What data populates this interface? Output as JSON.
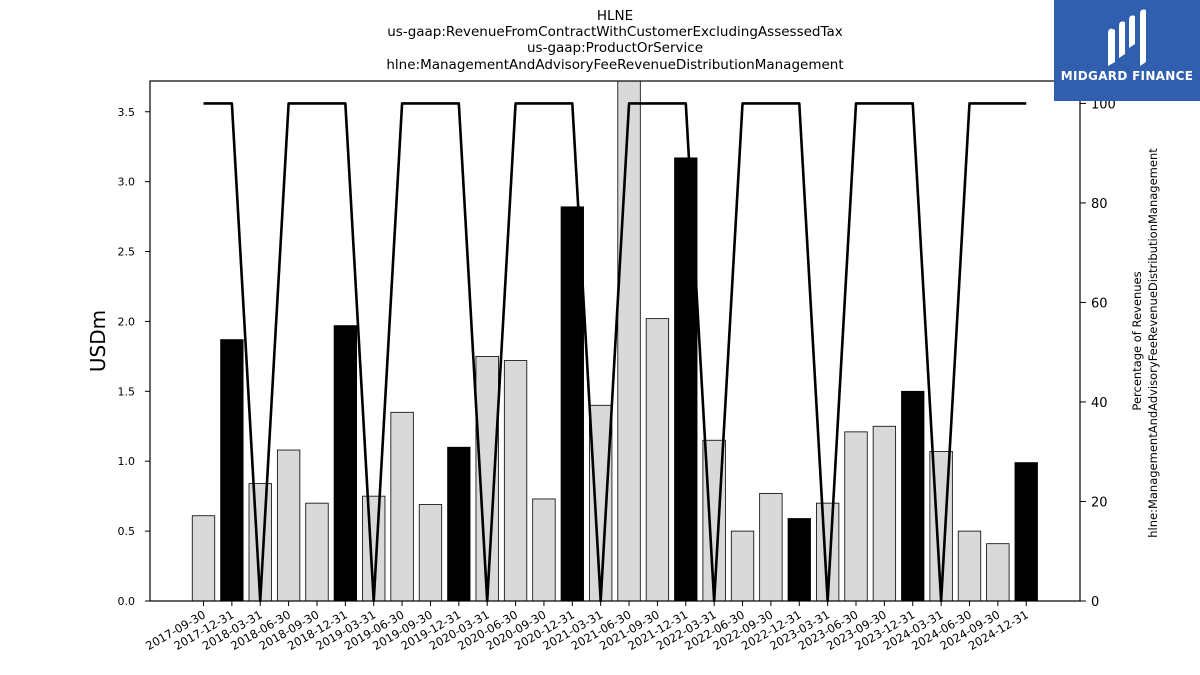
{
  "chart_data": {
    "type": "bar",
    "title_lines": [
      "HLNE",
      "us-gaap:RevenueFromContractWithCustomerExcludingAssessedTax",
      "us-gaap:ProductOrService",
      "hlne:ManagementAndAdvisoryFeeRevenueDistributionManagement"
    ],
    "ylabel": "USDm",
    "y2label_lines": [
      "Percentage of Revenues",
      "hlne:ManagementAndAdvisoryFeeRevenueDistributionManagement"
    ],
    "ylim": [
      0,
      3.72
    ],
    "y2lim": [
      0,
      104.5
    ],
    "yticks": [
      "0.0",
      "0.5",
      "1.0",
      "1.5",
      "2.0",
      "2.5",
      "3.0",
      "3.5"
    ],
    "y2ticks": [
      "0",
      "20",
      "40",
      "60",
      "80",
      "100"
    ],
    "categories": [
      "2017-09-30",
      "2017-12-31",
      "2018-03-31",
      "2018-06-30",
      "2018-09-30",
      "2018-12-31",
      "2019-03-31",
      "2019-06-30",
      "2019-09-30",
      "2019-12-31",
      "2020-03-31",
      "2020-06-30",
      "2020-09-30",
      "2020-12-31",
      "2021-03-31",
      "2021-06-30",
      "2021-09-30",
      "2021-12-31",
      "2022-03-31",
      "2022-06-30",
      "2022-09-30",
      "2022-12-31",
      "2023-03-31",
      "2023-06-30",
      "2023-09-30",
      "2023-12-31",
      "2024-03-31",
      "2024-06-30",
      "2024-09-30",
      "2024-12-31"
    ],
    "series": [
      {
        "kind": "bar",
        "values": [
          0.61,
          1.87,
          0.84,
          1.08,
          0.7,
          1.97,
          0.75,
          1.35,
          0.69,
          1.1,
          1.75,
          1.72,
          0.73,
          2.82,
          1.4,
          3.75,
          2.02,
          3.17,
          1.15,
          0.5,
          0.77,
          0.59,
          0.7,
          1.21,
          1.25,
          1.5,
          1.07,
          0.5,
          0.41,
          0.99
        ],
        "highlight": [
          false,
          true,
          false,
          false,
          false,
          true,
          false,
          false,
          false,
          true,
          false,
          false,
          false,
          true,
          false,
          false,
          false,
          true,
          false,
          false,
          false,
          true,
          false,
          false,
          false,
          true,
          false,
          false,
          false,
          true
        ]
      },
      {
        "kind": "line",
        "axis": "right",
        "values": [
          100,
          100,
          0,
          100,
          100,
          100,
          0,
          100,
          100,
          100,
          0,
          100,
          100,
          100,
          0,
          100,
          100,
          100,
          0,
          100,
          100,
          100,
          0,
          100,
          100,
          100,
          0,
          100,
          100,
          100
        ]
      }
    ],
    "colors": {
      "bar": "#d9d9d9",
      "bar_highlight": "#000000",
      "line": "#000000",
      "edge": "#000000"
    },
    "grid": false,
    "legend": "none"
  },
  "logo": {
    "text": "MIDGARD FINANCE",
    "icon": "midgard-logo-icon"
  }
}
